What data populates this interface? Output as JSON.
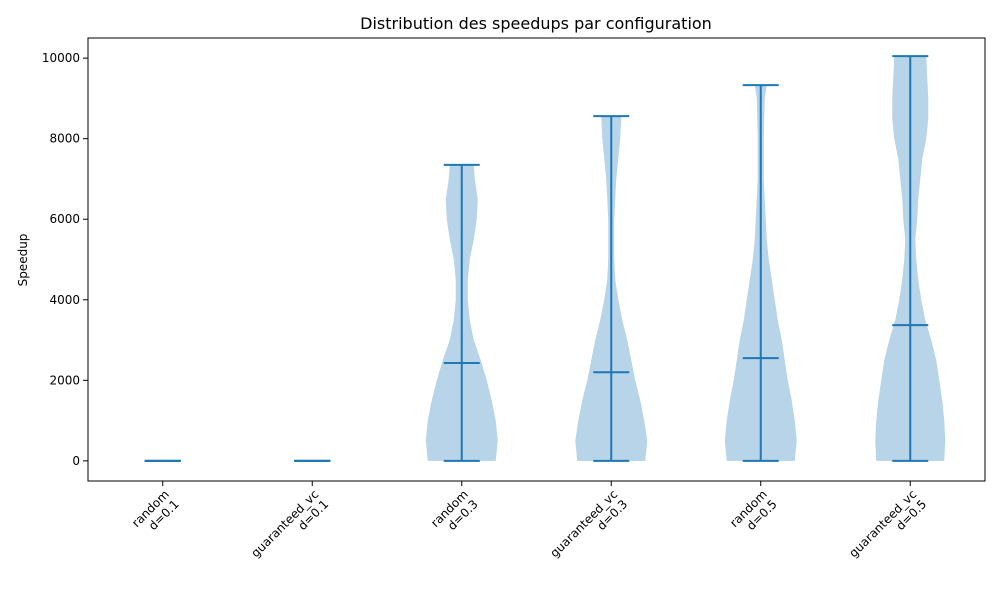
{
  "chart_data": {
    "type": "violin",
    "title": "Distribution des speedups par configuration",
    "xlabel": "",
    "ylabel": "Speedup",
    "ylim": [
      -500,
      10500
    ],
    "yticks": [
      0,
      2000,
      4000,
      6000,
      8000,
      10000
    ],
    "grid": false,
    "categories": [
      [
        "random",
        "d=0.1"
      ],
      [
        "guaranteed_vc",
        "d=0.1"
      ],
      [
        "random",
        "d=0.3"
      ],
      [
        "guaranteed_vc",
        "d=0.3"
      ],
      [
        "random",
        "d=0.5"
      ],
      [
        "guaranteed_vc",
        "d=0.5"
      ]
    ],
    "colors": {
      "body": "#b8d4e8",
      "line": "#1f77b4"
    },
    "violins": [
      {
        "min": 0,
        "mean": 0,
        "max": 0,
        "density": []
      },
      {
        "min": 0,
        "mean": 0,
        "max": 0,
        "density": []
      },
      {
        "min": 0,
        "mean": 2430,
        "max": 7350,
        "density": [
          [
            0,
            34
          ],
          [
            500,
            36
          ],
          [
            1000,
            34
          ],
          [
            1500,
            30
          ],
          [
            2000,
            25
          ],
          [
            2500,
            19
          ],
          [
            3000,
            12
          ],
          [
            3500,
            8
          ],
          [
            4000,
            6
          ],
          [
            4500,
            6
          ],
          [
            5000,
            8
          ],
          [
            5500,
            12
          ],
          [
            6000,
            15
          ],
          [
            6500,
            16
          ],
          [
            7000,
            13
          ],
          [
            7350,
            12
          ]
        ]
      },
      {
        "min": 0,
        "mean": 2200,
        "max": 8560,
        "density": [
          [
            0,
            34
          ],
          [
            500,
            36
          ],
          [
            1000,
            33
          ],
          [
            1500,
            29
          ],
          [
            2000,
            24
          ],
          [
            2500,
            20
          ],
          [
            3000,
            16
          ],
          [
            3500,
            11
          ],
          [
            4000,
            7
          ],
          [
            4500,
            4
          ],
          [
            5000,
            3
          ],
          [
            6000,
            3
          ],
          [
            7000,
            5
          ],
          [
            8000,
            9
          ],
          [
            8560,
            10
          ]
        ]
      },
      {
        "min": 0,
        "mean": 2550,
        "max": 9330,
        "density": [
          [
            0,
            34
          ],
          [
            500,
            36
          ],
          [
            1000,
            34
          ],
          [
            1500,
            31
          ],
          [
            2000,
            27
          ],
          [
            2500,
            24
          ],
          [
            3000,
            21
          ],
          [
            3500,
            17
          ],
          [
            4000,
            14
          ],
          [
            4500,
            11
          ],
          [
            5000,
            8
          ],
          [
            5500,
            6
          ],
          [
            6000,
            5
          ],
          [
            7000,
            3
          ],
          [
            8000,
            3
          ],
          [
            9000,
            4
          ],
          [
            9330,
            6
          ]
        ]
      },
      {
        "min": 0,
        "mean": 3370,
        "max": 10050,
        "density": [
          [
            0,
            34
          ],
          [
            500,
            35
          ],
          [
            1000,
            34
          ],
          [
            1500,
            32
          ],
          [
            2000,
            29
          ],
          [
            2500,
            26
          ],
          [
            3000,
            21
          ],
          [
            3500,
            15
          ],
          [
            4000,
            11
          ],
          [
            4500,
            8
          ],
          [
            5000,
            6
          ],
          [
            5500,
            5
          ],
          [
            6000,
            7
          ],
          [
            6500,
            8
          ],
          [
            7000,
            10
          ],
          [
            7500,
            12
          ],
          [
            8000,
            16
          ],
          [
            8500,
            18
          ],
          [
            9000,
            18
          ],
          [
            9500,
            17
          ],
          [
            10050,
            16
          ]
        ]
      }
    ]
  }
}
